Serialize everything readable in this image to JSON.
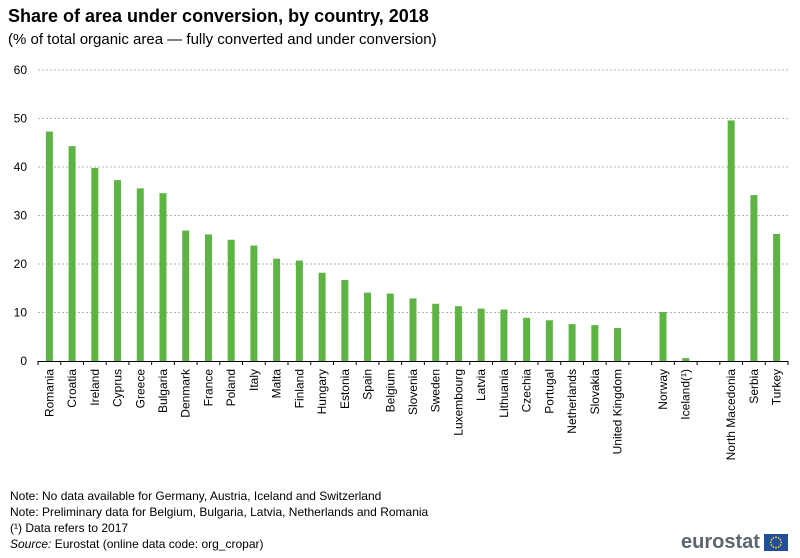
{
  "chart_data": {
    "type": "bar",
    "title": "Share of area under conversion, by country, 2018",
    "subtitle": "(% of total organic area — fully converted and under conversion)",
    "xlabel": "",
    "ylabel": "",
    "ylim": [
      0,
      60
    ],
    "yticks": [
      0,
      10,
      20,
      30,
      40,
      50,
      60
    ],
    "grid": true,
    "color": "#5db443",
    "categories": [
      "Romania",
      "Croatia",
      "Ireland",
      "Cyprus",
      "Greece",
      "Bulgaria",
      "Denmark",
      "France",
      "Poland",
      "Italy",
      "Malta",
      "Finland",
      "Hungary",
      "Estonia",
      "Spain",
      "Belgium",
      "Slovenia",
      "Sweden",
      "Luxembourg",
      "Latvia",
      "Lithuania",
      "Czechia",
      "Portugal",
      "Netherlands",
      "Slovakia",
      "United Kingdom",
      "",
      "Norway",
      "Iceland(¹)",
      "",
      "North Macedonia",
      "Serbia",
      "Turkey"
    ],
    "values": [
      47.3,
      44.3,
      39.8,
      37.3,
      35.6,
      34.6,
      26.9,
      26.1,
      25.0,
      23.8,
      21.1,
      20.7,
      18.2,
      16.7,
      14.1,
      13.9,
      12.9,
      11.8,
      11.3,
      10.8,
      10.6,
      8.9,
      8.4,
      7.6,
      7.4,
      6.8,
      null,
      10.1,
      0.6,
      null,
      49.6,
      34.2,
      26.2
    ]
  },
  "notes": {
    "note1": "Note: No data available for Germany,  Austria, Iceland and Switzerland",
    "note2": "Note: Preliminary data for Belgium, Bulgaria, Latvia, Netherlands and Romania",
    "note3": "(¹) Data refers to 2017",
    "source_label": "Source:",
    "source_text": " Eurostat (online data code: org_cropar)"
  },
  "logo": {
    "text": "eurostat"
  }
}
